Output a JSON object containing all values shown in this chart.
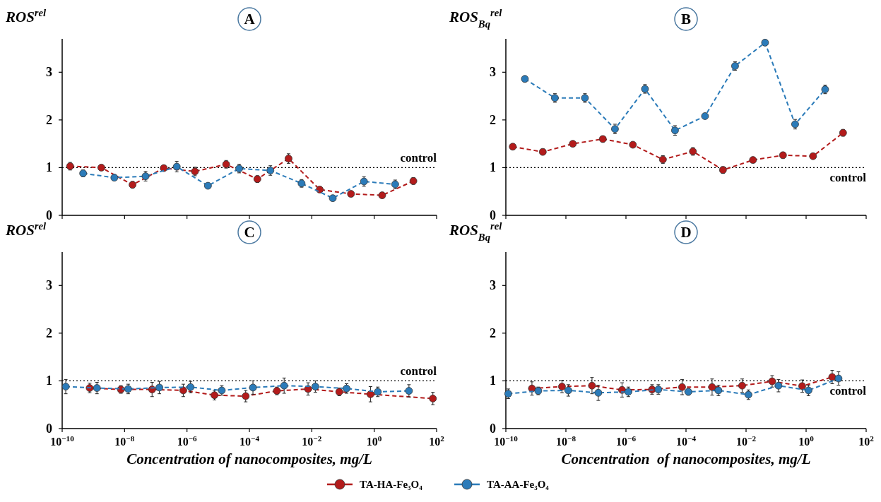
{
  "chart_data": [
    {
      "type": "line",
      "title": "A",
      "ylabel": "ROS$^{rel}$",
      "xlim": [
        1e-10,
        100
      ],
      "ylim": [
        0,
        3.7
      ],
      "yticks": [
        0,
        1,
        2,
        3
      ],
      "log": "x",
      "tick_labels": "y",
      "marker": "circle",
      "line_style": "dashed",
      "legend": "bottom",
      "xticks": [
        {
          "value": 1e-10,
          "label": null
        },
        {
          "value": 1e-08,
          "label": null
        },
        {
          "value": 1e-06,
          "label": null
        },
        {
          "value": 0.0001,
          "label": null
        },
        {
          "value": 0.01,
          "label": null
        },
        {
          "value": 1,
          "label": null
        },
        {
          "value": 100,
          "label": null
        }
      ],
      "ref_lines": [
        {
          "axis": "y",
          "value": 1,
          "label": "control",
          "color": "#000000",
          "line_style": "dotted"
        }
      ],
      "series": [
        {
          "name": "TA-HA-Fe₃O₄",
          "color": "#b31b1b",
          "x": [
            1.8e-10,
            1.8e-09,
            1.8e-08,
            1.8e-07,
            1.8e-06,
            1.8e-05,
            0.00018,
            0.0018,
            0.018,
            0.18,
            1.8,
            18
          ],
          "values": [
            1.03,
            1.0,
            0.64,
            0.99,
            0.92,
            1.07,
            0.76,
            1.19,
            0.54,
            0.45,
            0.42,
            0.72
          ],
          "errors": [
            0.08,
            0.06,
            0.07,
            0.05,
            0.09,
            0.08,
            0.07,
            0.1,
            0.06,
            0.05,
            0.05,
            0.07
          ]
        },
        {
          "name": "TA-AA-Fe₃O₄",
          "color": "#2b7bb9",
          "x": [
            4.7e-10,
            4.7e-09,
            4.7e-08,
            4.7e-07,
            4.7e-06,
            4.7e-05,
            0.00047,
            0.0047,
            0.047,
            0.47,
            4.7
          ],
          "values": [
            0.88,
            0.79,
            0.82,
            1.02,
            0.62,
            0.98,
            0.94,
            0.67,
            0.36,
            0.71,
            0.65
          ],
          "errors": [
            0.07,
            0.05,
            0.1,
            0.11,
            0.05,
            0.09,
            0.1,
            0.08,
            0.05,
            0.1,
            0.09
          ]
        }
      ]
    },
    {
      "type": "line",
      "title": "B",
      "ylabel": "ROS$_{Bq}$$^{rel}$",
      "xlim": [
        1e-10,
        100
      ],
      "ylim": [
        0,
        3.7
      ],
      "yticks": [
        0,
        1,
        2,
        3
      ],
      "log": "x",
      "tick_labels": "y",
      "marker": "circle",
      "line_style": "dashed",
      "xticks": [
        {
          "value": 1e-10,
          "label": null
        },
        {
          "value": 1e-08,
          "label": null
        },
        {
          "value": 1e-06,
          "label": null
        },
        {
          "value": 0.0001,
          "label": null
        },
        {
          "value": 0.01,
          "label": null
        },
        {
          "value": 1,
          "label": null
        },
        {
          "value": 100,
          "label": null
        }
      ],
      "ref_lines": [
        {
          "axis": "y",
          "value": 1,
          "label": "control",
          "color": "#000000",
          "line_style": "dotted"
        }
      ],
      "series": [
        {
          "color": "#b31b1b",
          "x": [
            1.7e-10,
            1.7e-09,
            1.7e-08,
            1.7e-07,
            1.7e-06,
            1.7e-05,
            0.00017,
            0.0017,
            0.017,
            0.17,
            1.7,
            17
          ],
          "values": [
            1.44,
            1.33,
            1.5,
            1.6,
            1.48,
            1.17,
            1.34,
            0.95,
            1.16,
            1.26,
            1.24,
            1.73
          ],
          "errors": [
            0.06,
            0.06,
            0.05,
            0.06,
            0.05,
            0.08,
            0.08,
            0.07,
            0.05,
            0.06,
            0.05,
            0.07
          ]
        },
        {
          "color": "#2b7bb9",
          "x": [
            4.3e-10,
            4.3e-09,
            4.3e-08,
            4.3e-07,
            4.3e-06,
            4.3e-05,
            0.00043,
            0.0043,
            0.043,
            0.43,
            4.3
          ],
          "values": [
            2.86,
            2.46,
            2.46,
            1.81,
            2.65,
            1.78,
            2.08,
            3.13,
            3.62,
            1.91,
            2.64
          ],
          "errors": [
            0.06,
            0.09,
            0.09,
            0.1,
            0.09,
            0.1,
            0.05,
            0.09,
            0.06,
            0.1,
            0.09
          ]
        }
      ]
    },
    {
      "type": "line",
      "title": "C",
      "ylabel": "ROS$^{rel}$",
      "xlabel": "Concentration of nanocomposites, mg/L",
      "xlim": [
        1e-10,
        100
      ],
      "ylim": [
        0,
        3.7
      ],
      "yticks": [
        0,
        1,
        2,
        3
      ],
      "log": "x",
      "marker": "circle",
      "line_style": "dashed",
      "xticks": [
        {
          "value": 1e-10,
          "label": "10$^{−10}$"
        },
        {
          "value": 1e-08,
          "label": "10$^{−8}$"
        },
        {
          "value": 1e-06,
          "label": "10$^{−6}$"
        },
        {
          "value": 0.0001,
          "label": "10$^{−4}$"
        },
        {
          "value": 0.01,
          "label": "10$^{−2}$"
        },
        {
          "value": 1,
          "label": "10$^{0}$"
        },
        {
          "value": 100,
          "label": "10$^{2}$"
        }
      ],
      "ref_lines": [
        {
          "axis": "y",
          "value": 1,
          "label": "control",
          "color": "#000000",
          "line_style": "dotted"
        }
      ],
      "series": [
        {
          "color": "#b31b1b",
          "x": [
            7.6e-10,
            7.6e-09,
            7.6e-08,
            7.6e-07,
            7.6e-06,
            7.6e-05,
            0.00076,
            0.0076,
            0.076,
            0.76,
            76
          ],
          "values": [
            0.85,
            0.82,
            0.82,
            0.8,
            0.7,
            0.68,
            0.79,
            0.83,
            0.77,
            0.72,
            0.63
          ],
          "errors": [
            0.1,
            0.08,
            0.15,
            0.13,
            0.1,
            0.12,
            0.08,
            0.13,
            0.08,
            0.16,
            0.13
          ]
        },
        {
          "color": "#2b7bb9",
          "x": [
            1.3e-10,
            1.3e-09,
            1.3e-08,
            1.3e-07,
            1.3e-06,
            1.3e-05,
            0.00013,
            0.0013,
            0.013,
            0.13,
            1.3,
            13
          ],
          "values": [
            0.88,
            0.85,
            0.83,
            0.86,
            0.87,
            0.8,
            0.86,
            0.9,
            0.88,
            0.84,
            0.77,
            0.79
          ],
          "errors": [
            0.15,
            0.12,
            0.1,
            0.13,
            0.12,
            0.1,
            0.14,
            0.16,
            0.12,
            0.1,
            0.1,
            0.13
          ]
        }
      ]
    },
    {
      "type": "line",
      "title": "D",
      "ylabel": "ROS$_{Bq}$$^{rel}$",
      "xlabel": "Concentration  of nanocomposites, mg/L",
      "xlim": [
        1e-10,
        100
      ],
      "ylim": [
        0,
        3.7
      ],
      "yticks": [
        0,
        1,
        2,
        3
      ],
      "log": "x",
      "marker": "circle",
      "line_style": "dashed",
      "xticks": [
        {
          "value": 1e-10,
          "label": "10$^{−10}$"
        },
        {
          "value": 1e-08,
          "label": "10$^{−8}$"
        },
        {
          "value": 1e-06,
          "label": "10$^{−6}$"
        },
        {
          "value": 0.0001,
          "label": "10$^{−4}$"
        },
        {
          "value": 0.01,
          "label": "10$^{−2}$"
        },
        {
          "value": 1,
          "label": "10$^{0}$"
        },
        {
          "value": 100,
          "label": "10$^{2}$"
        }
      ],
      "ref_lines": [
        {
          "axis": "y",
          "value": 1,
          "label": "control",
          "color": "#000000",
          "line_style": "dotted"
        }
      ],
      "series": [
        {
          "color": "#b31b1b",
          "x": [
            7.4e-10,
            7.4e-09,
            7.4e-08,
            7.4e-07,
            7.4e-06,
            7.4e-05,
            0.00074,
            0.0074,
            0.074,
            0.74,
            7.4
          ],
          "values": [
            0.84,
            0.88,
            0.9,
            0.81,
            0.82,
            0.87,
            0.87,
            0.9,
            0.99,
            0.89,
            1.08
          ],
          "errors": [
            0.14,
            0.13,
            0.17,
            0.15,
            0.1,
            0.16,
            0.17,
            0.14,
            0.12,
            0.13,
            0.14
          ]
        },
        {
          "color": "#2b7bb9",
          "x": [
            1.2e-10,
            1.2e-09,
            1.2e-08,
            1.2e-07,
            1.2e-06,
            1.2e-05,
            0.00012,
            0.0012,
            0.012,
            0.12,
            1.2,
            12
          ],
          "values": [
            0.73,
            0.79,
            0.8,
            0.75,
            0.77,
            0.82,
            0.77,
            0.8,
            0.71,
            0.9,
            0.8,
            1.05
          ],
          "errors": [
            0.1,
            0.08,
            0.12,
            0.16,
            0.1,
            0.1,
            0.07,
            0.11,
            0.1,
            0.13,
            0.11,
            0.14
          ]
        }
      ]
    }
  ]
}
